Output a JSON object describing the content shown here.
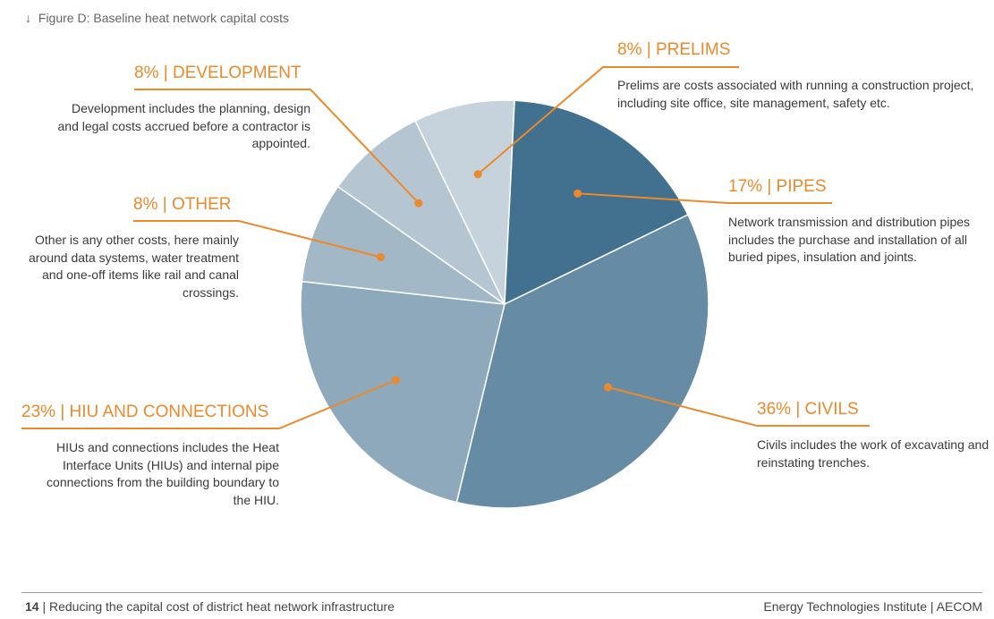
{
  "figure": {
    "arrow": "↓",
    "title": "Figure D: Baseline heat network capital costs"
  },
  "chart_data": {
    "type": "pie",
    "slices": [
      {
        "label": "PRELIMS",
        "percent_label": "8%",
        "value": 8,
        "color": "#c6d3dc",
        "description": "Prelims are costs associated with running a construction project, including site office, site management, safety etc."
      },
      {
        "label": "PIPES",
        "percent_label": "17%",
        "value": 17,
        "color": "#42708f",
        "description": "Network transmission and distribution pipes includes the purchase and installation of all buried pipes, insulation and joints."
      },
      {
        "label": "CIVILS",
        "percent_label": "36%",
        "value": 36,
        "color": "#668ca5",
        "description": "Civils includes the work of excavating and reinstating trenches."
      },
      {
        "label": "HIU AND CONNECTIONS",
        "percent_label": "23%",
        "value": 23,
        "color": "#8ea9bc",
        "description": "HIUs and connections includes the Heat Interface Units (HIUs) and internal pipe connections from the building boundary to the HIU."
      },
      {
        "label": "OTHER",
        "percent_label": "8%",
        "value": 8,
        "color": "#a3b8c7",
        "description": "Other is any other costs, here mainly around data systems, water treatment and one-off items like rail and canal crossings."
      },
      {
        "label": "DEVELOPMENT",
        "percent_label": "8%",
        "value": 8,
        "color": "#b5c6d2",
        "description": "Development includes the planning, design and legal costs accrued before a contractor is appointed."
      }
    ],
    "accent_color": "#ea8a2c",
    "separator": "|"
  },
  "footer": {
    "page_number": "14",
    "separator": "|",
    "left_text": "Reducing the capital cost of district heat network infrastructure",
    "right_text": "Energy Technologies Institute  |  AECOM"
  }
}
